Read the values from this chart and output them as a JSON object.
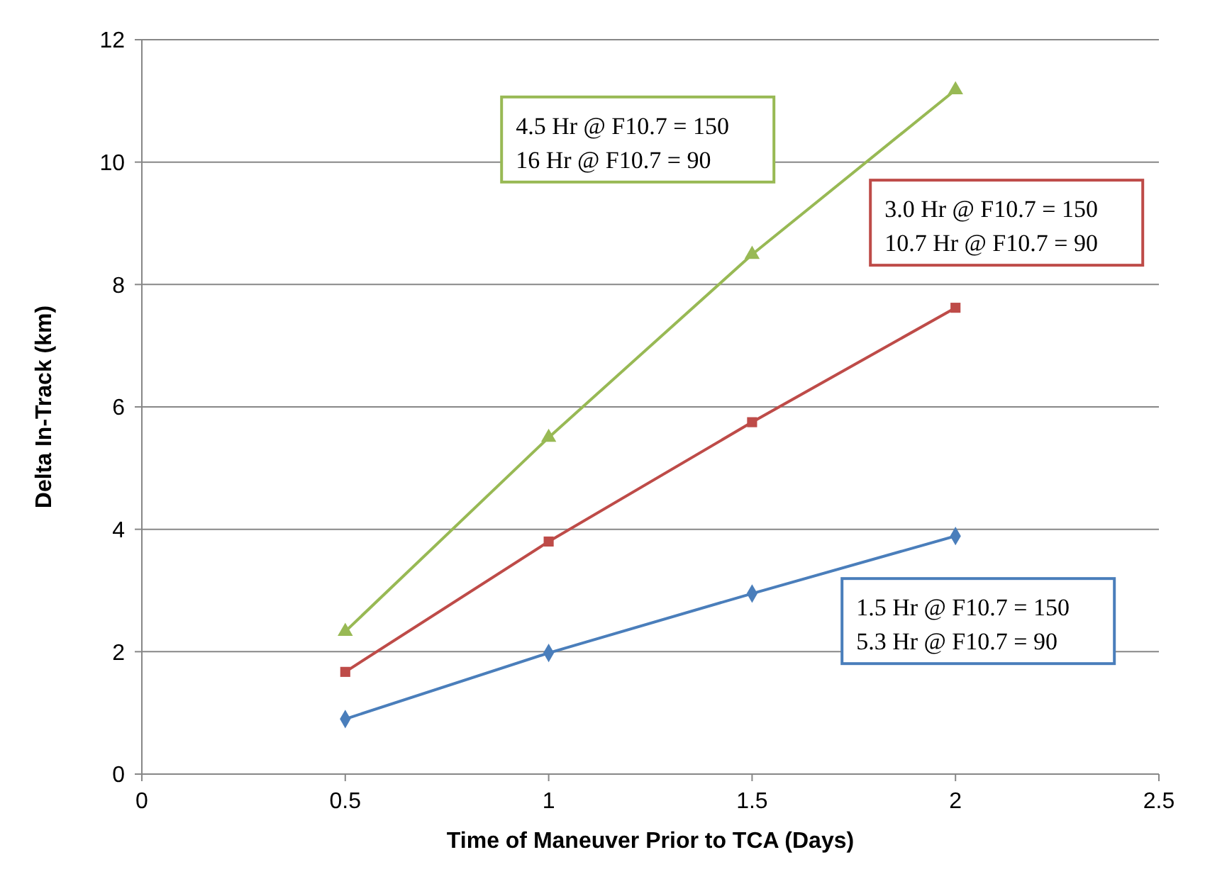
{
  "chart_data": {
    "type": "line",
    "xlabel": "Time of Maneuver Prior to TCA (Days)",
    "ylabel": "Delta In-Track (km)",
    "x": [
      0.5,
      1,
      1.5,
      2
    ],
    "series": [
      {
        "color": "#4a7ebb",
        "marker": "diamond",
        "values": [
          0.9,
          1.98,
          2.95,
          3.89
        ]
      },
      {
        "color": "#be4b48",
        "marker": "square",
        "values": [
          1.67,
          3.8,
          5.75,
          7.62
        ]
      },
      {
        "color": "#98b954",
        "marker": "triangle",
        "values": [
          2.33,
          5.5,
          8.49,
          11.18
        ]
      }
    ],
    "xlim": [
      0,
      2.5
    ],
    "xticks": [
      0,
      0.5,
      1,
      1.5,
      2,
      2.5
    ],
    "ylim": [
      0,
      12
    ],
    "yticks": [
      0,
      2,
      4,
      6,
      8,
      10,
      12
    ],
    "grid": "y",
    "line_style": "solid",
    "annotations": [
      "1.5 Hr @ F10.7 = 150\n5.3 Hr @ F10.7 = 90",
      "3.0 Hr @ F10.7 = 150\n10.7 Hr @ F10.7 = 90",
      "4.5 Hr @ F10.7 = 150\n16 Hr @ F10.7 = 90"
    ]
  }
}
